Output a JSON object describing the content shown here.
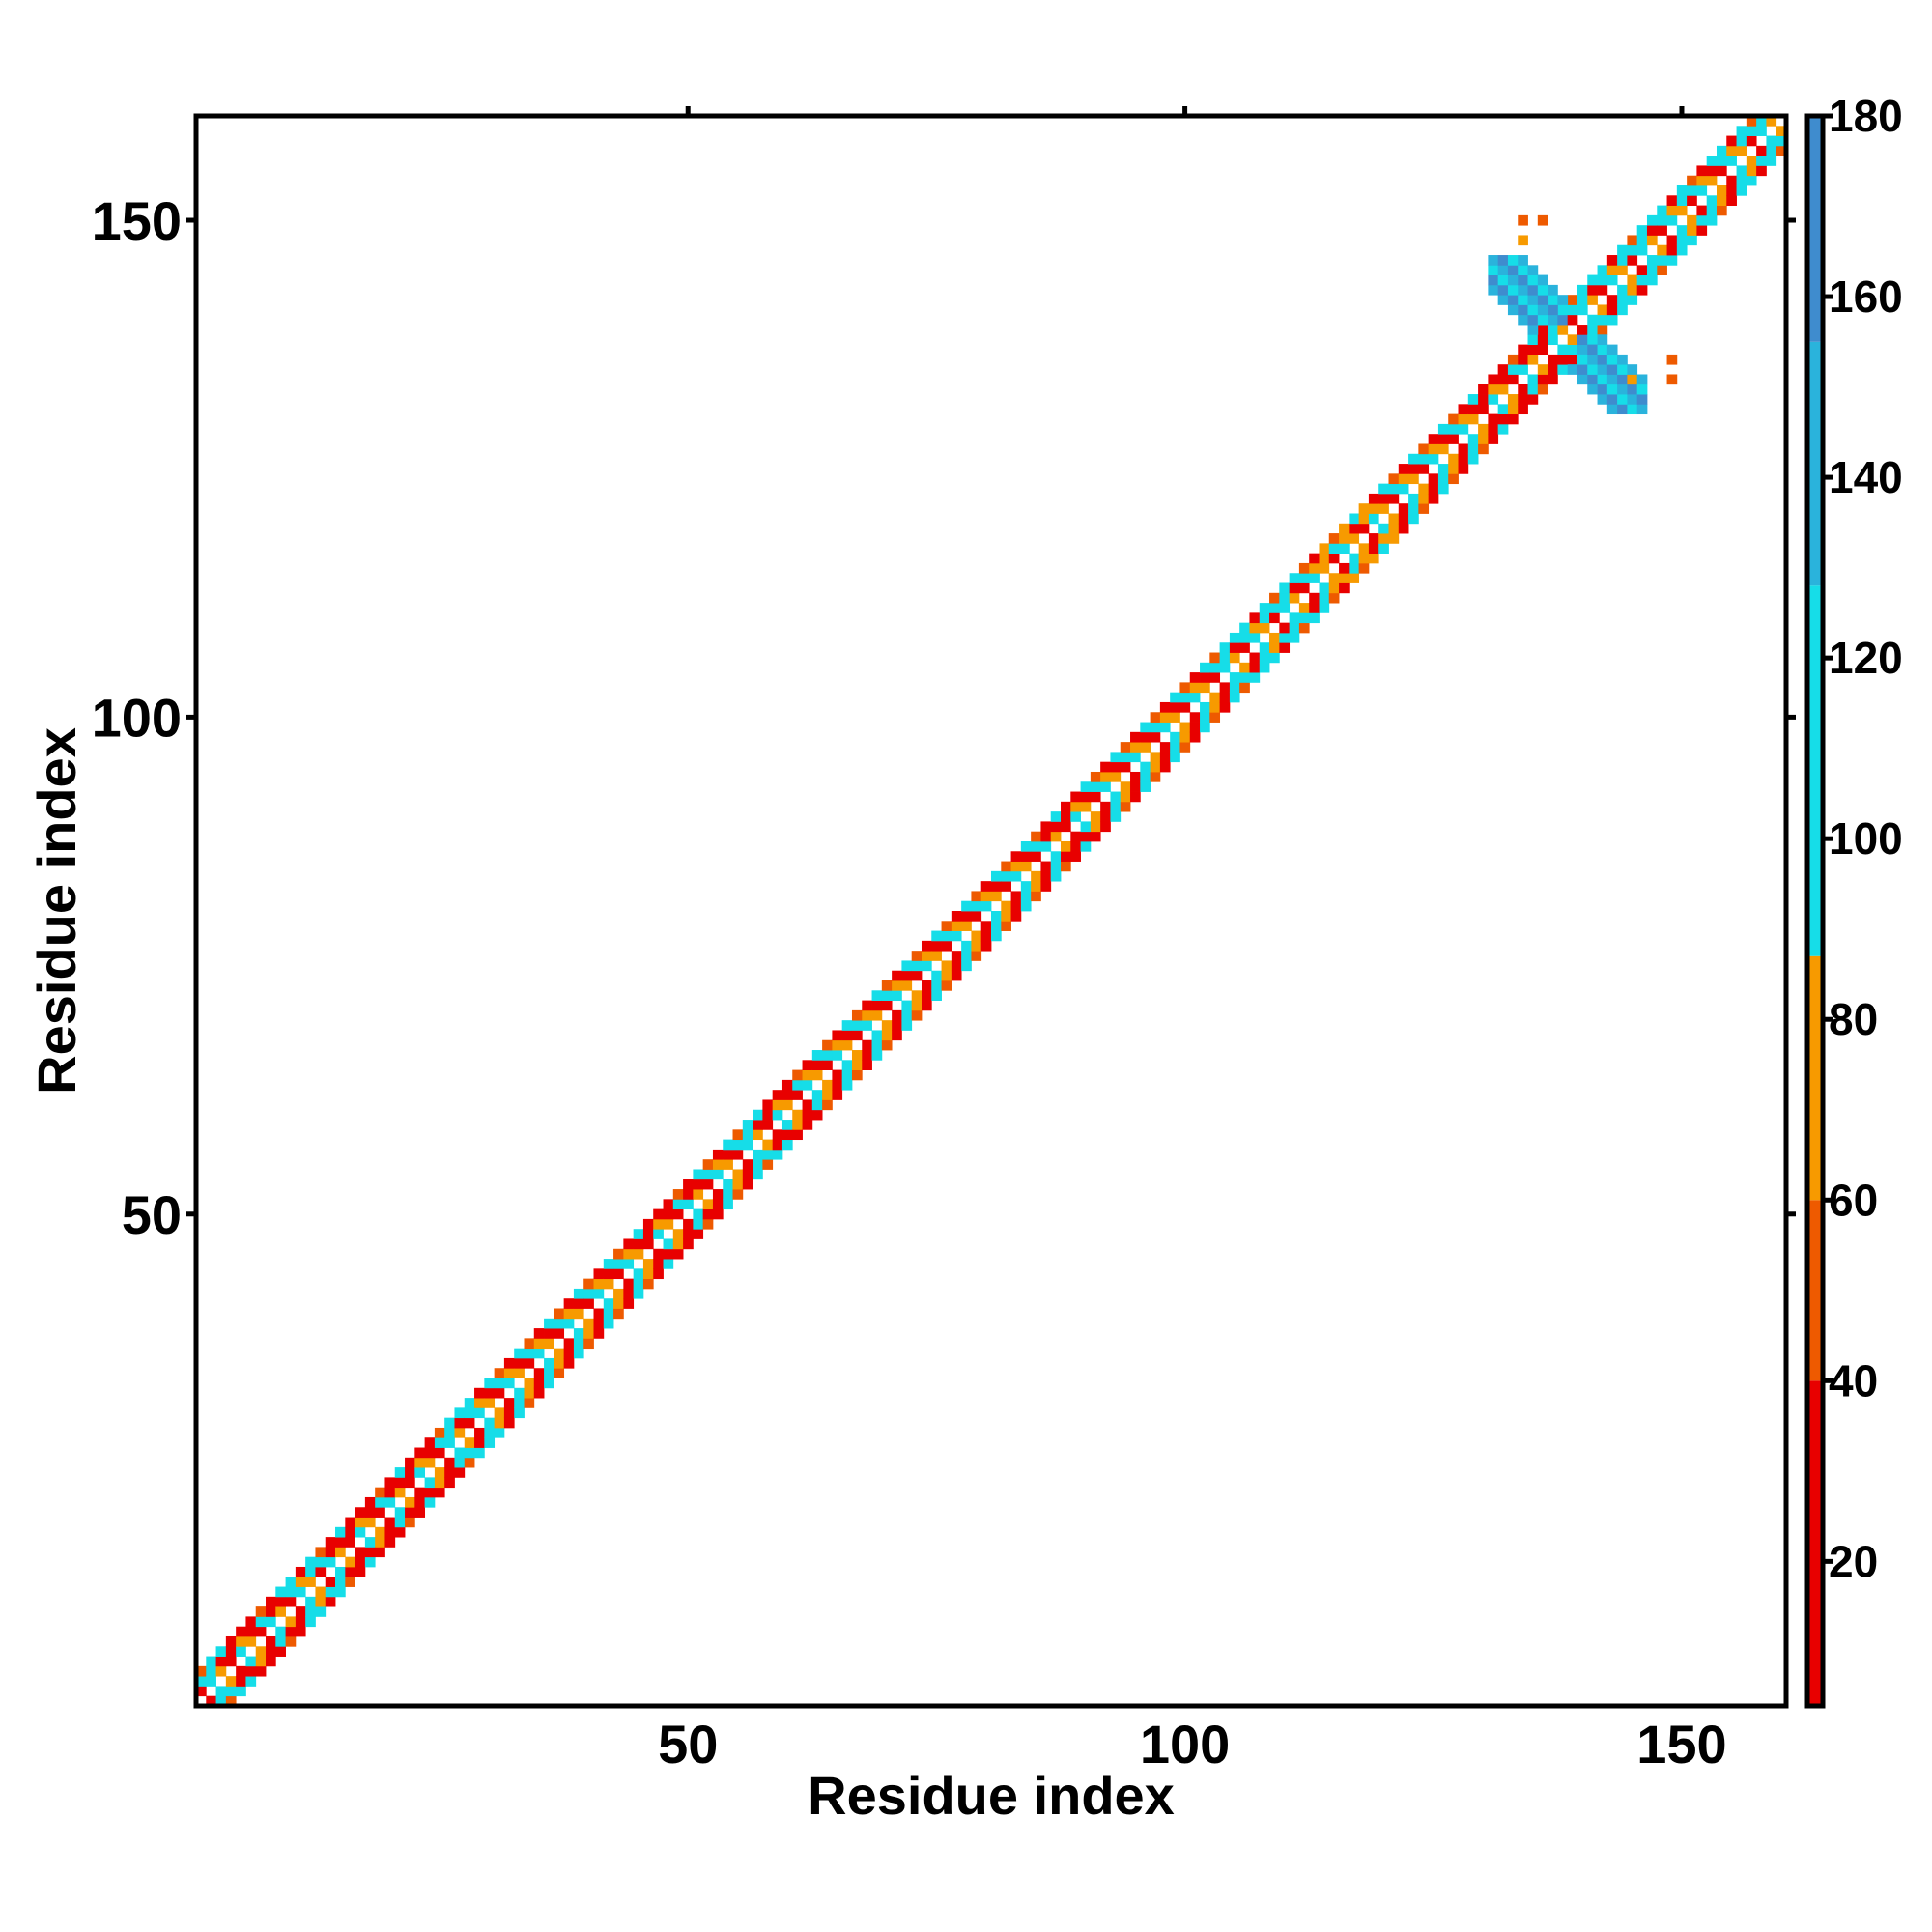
{
  "chart_data": {
    "type": "heatmap",
    "title": "",
    "xlabel": "Residue index",
    "ylabel": "Residue index",
    "xlim": [
      1,
      160
    ],
    "ylim": [
      1,
      160
    ],
    "xticks": [
      50,
      100,
      150
    ],
    "yticks": [
      50,
      100,
      150
    ],
    "grid": false,
    "colorbar": {
      "range": [
        4,
        180
      ],
      "ticks": [
        20,
        40,
        60,
        80,
        100,
        120,
        140,
        160,
        180
      ],
      "segments": [
        {
          "from": 4,
          "to": 40,
          "color": "#e80000"
        },
        {
          "from": 40,
          "to": 60,
          "color": "#ee5a00"
        },
        {
          "from": 60,
          "to": 87,
          "color": "#f79a00"
        },
        {
          "from": 87,
          "to": 128,
          "color": "#16dde8"
        },
        {
          "from": 128,
          "to": 155,
          "color": "#2ab3dc"
        },
        {
          "from": 155,
          "to": 180,
          "color": "#3f8cce"
        }
      ]
    },
    "band_pattern": {
      "offsets": [
        -3,
        -2,
        -1,
        1,
        2,
        3
      ],
      "cycle_values": [
        [
          112,
          35,
          65,
          65,
          35,
          112
        ],
        [
          60,
          108,
          35,
          35,
          108,
          60
        ],
        [
          35,
          70,
          108,
          108,
          70,
          35
        ]
      ]
    },
    "regions": [
      {
        "from": 1,
        "to": 3,
        "value": 110
      },
      {
        "from": 4,
        "to": 8,
        "value": 25
      },
      {
        "from": 9,
        "to": 12,
        "value": 110
      },
      {
        "from": 13,
        "to": 24,
        "value": 20
      },
      {
        "from": 25,
        "to": 29,
        "value": 110
      },
      {
        "from": 46,
        "to": 50,
        "value": 25
      },
      {
        "from": 55,
        "to": 59,
        "value": 110
      },
      {
        "from": 58,
        "to": 60,
        "value": 25
      },
      {
        "from": 85,
        "to": 89,
        "value": 25
      },
      {
        "from": 103,
        "to": 111,
        "value": 110
      },
      {
        "from": 114,
        "to": 118,
        "value": 65
      },
      {
        "from": 130,
        "to": 136,
        "value": 20
      },
      {
        "from": 137,
        "to": 141,
        "value": 110
      },
      {
        "from": 142,
        "to": 151,
        "value": 120
      },
      {
        "from": 153,
        "to": 160,
        "value": 110
      }
    ],
    "cross_region": {
      "center": 138.5,
      "half_width": 8,
      "values": [
        125,
        150,
        165
      ]
    },
    "isolated_points": [
      {
        "x": 134,
        "y": 150,
        "value": 50
      },
      {
        "x": 136,
        "y": 150,
        "value": 50
      },
      {
        "x": 134,
        "y": 148,
        "value": 65
      },
      {
        "x": 149,
        "y": 136,
        "value": 50
      },
      {
        "x": 149,
        "y": 134,
        "value": 50
      },
      {
        "x": 145,
        "y": 134,
        "value": 70
      }
    ]
  }
}
